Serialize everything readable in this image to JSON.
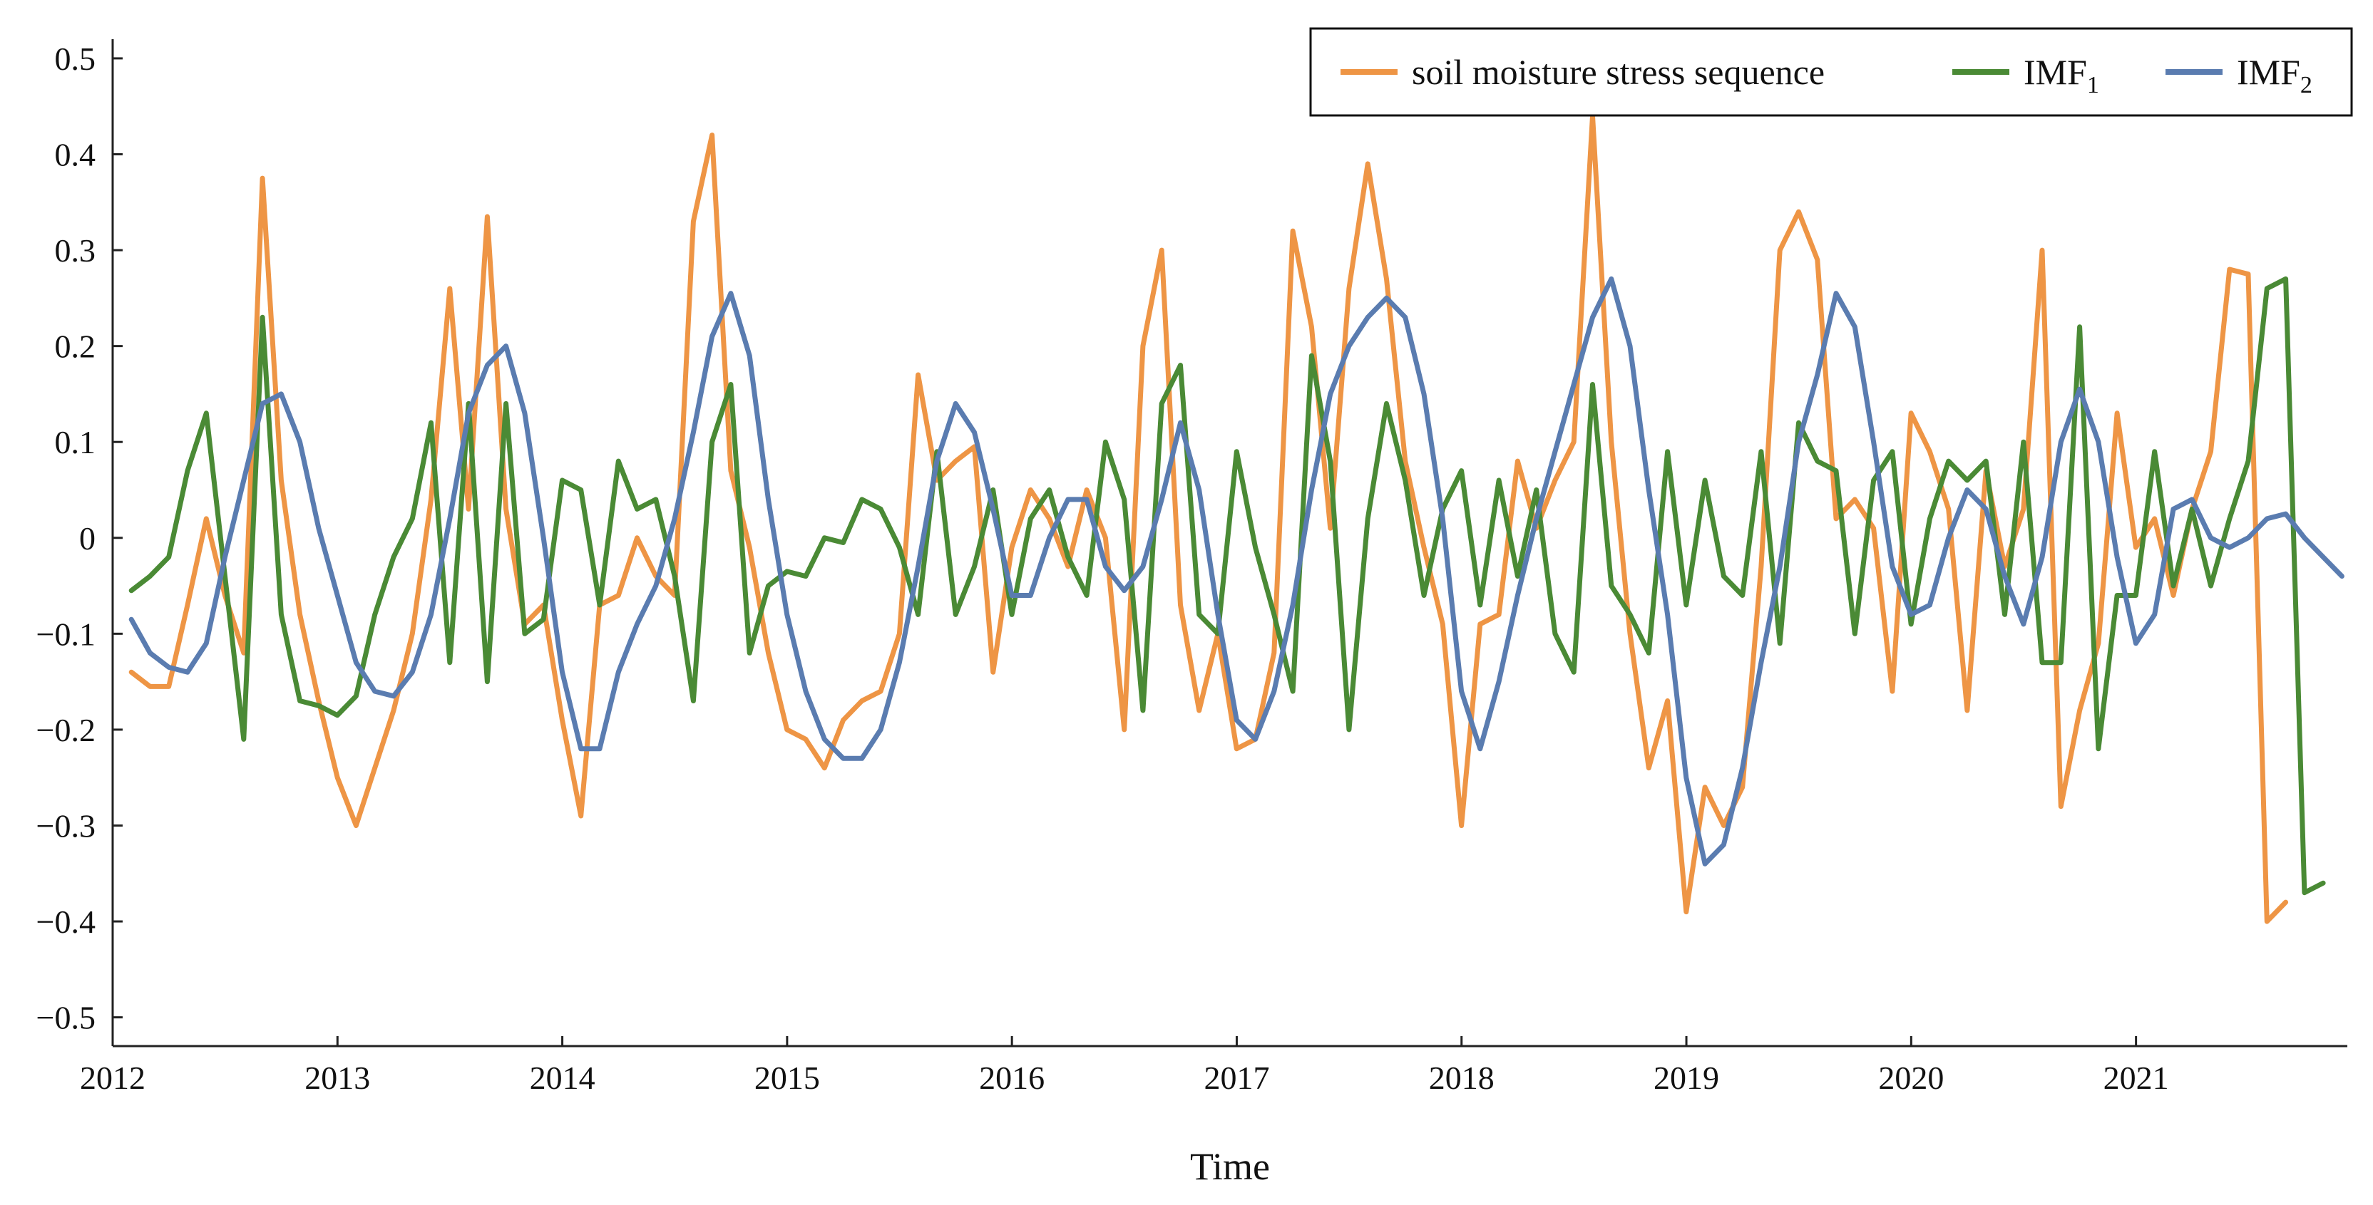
{
  "chart_data": {
    "type": "line",
    "title": "",
    "xlabel": "Time",
    "ylabel": "",
    "xlim": [
      2012.0,
      2021.94
    ],
    "ylim": [
      -0.53,
      0.52
    ],
    "x_ticks": [
      "2012",
      "2013",
      "2014",
      "2015",
      "2016",
      "2017",
      "2018",
      "2019",
      "2020",
      "2021"
    ],
    "y_ticks": [
      "0.5",
      "0.4",
      "0.3",
      "0.2",
      "0.1",
      "0",
      "−0.1",
      "−0.2",
      "−0.3",
      "−0.4",
      "−0.5"
    ],
    "y_tick_values": [
      0.5,
      0.4,
      0.3,
      0.2,
      0.1,
      0,
      -0.1,
      -0.2,
      -0.3,
      -0.4,
      -0.5
    ],
    "legend_position": "top-right",
    "x_start": 2012.083,
    "x_step": 0.08333,
    "series": [
      {
        "name": "soil moisture stress sequence",
        "legend_main": "soil moisture stress sequence",
        "legend_sub": "",
        "color": "#ee9545",
        "values": [
          -0.14,
          -0.155,
          -0.155,
          -0.07,
          0.02,
          -0.06,
          -0.12,
          0.375,
          0.06,
          -0.08,
          -0.17,
          -0.25,
          -0.3,
          -0.24,
          -0.18,
          -0.1,
          0.04,
          0.26,
          0.03,
          0.335,
          0.03,
          -0.09,
          -0.07,
          -0.19,
          -0.29,
          -0.07,
          -0.06,
          0.0,
          -0.04,
          -0.06,
          0.33,
          0.42,
          0.07,
          -0.01,
          -0.12,
          -0.2,
          -0.21,
          -0.24,
          -0.19,
          -0.17,
          -0.16,
          -0.1,
          0.17,
          0.06,
          0.08,
          0.095,
          -0.14,
          -0.01,
          0.05,
          0.02,
          -0.03,
          0.05,
          0.0,
          -0.2,
          0.2,
          0.3,
          -0.07,
          -0.18,
          -0.1,
          -0.22,
          -0.21,
          -0.12,
          0.32,
          0.22,
          0.01,
          0.26,
          0.39,
          0.27,
          0.08,
          -0.01,
          -0.09,
          -0.3,
          -0.09,
          -0.08,
          0.08,
          0.01,
          0.06,
          0.1,
          0.44,
          0.1,
          -0.1,
          -0.24,
          -0.17,
          -0.39,
          -0.26,
          -0.3,
          -0.26,
          -0.03,
          0.3,
          0.34,
          0.29,
          0.02,
          0.04,
          0.01,
          -0.16,
          0.13,
          0.09,
          0.03,
          -0.18,
          0.07,
          -0.03,
          0.03,
          0.3,
          -0.28,
          -0.18,
          -0.11,
          0.13,
          -0.01,
          0.02,
          -0.06,
          0.03,
          0.09,
          0.28,
          0.275,
          -0.4,
          -0.38
        ]
      },
      {
        "name": "IMF1",
        "legend_main": "IMF",
        "legend_sub": "1",
        "color": "#4a8a35",
        "values": [
          -0.055,
          -0.04,
          -0.02,
          0.07,
          0.13,
          -0.04,
          -0.21,
          0.23,
          -0.08,
          -0.17,
          -0.175,
          -0.185,
          -0.165,
          -0.08,
          -0.02,
          0.02,
          0.12,
          -0.13,
          0.14,
          -0.15,
          0.14,
          -0.1,
          -0.085,
          0.06,
          0.05,
          -0.07,
          0.08,
          0.03,
          0.04,
          -0.04,
          -0.17,
          0.1,
          0.16,
          -0.12,
          -0.05,
          -0.035,
          -0.04,
          0.0,
          -0.005,
          0.04,
          0.03,
          -0.01,
          -0.08,
          0.09,
          -0.08,
          -0.03,
          0.05,
          -0.08,
          0.02,
          0.05,
          -0.02,
          -0.06,
          0.1,
          0.04,
          -0.18,
          0.14,
          0.18,
          -0.08,
          -0.1,
          0.09,
          -0.01,
          -0.08,
          -0.16,
          0.19,
          0.08,
          -0.2,
          0.02,
          0.14,
          0.06,
          -0.06,
          0.03,
          0.07,
          -0.07,
          0.06,
          -0.04,
          0.05,
          -0.1,
          -0.14,
          0.16,
          -0.05,
          -0.08,
          -0.12,
          0.09,
          -0.07,
          0.06,
          -0.04,
          -0.06,
          0.09,
          -0.11,
          0.12,
          0.08,
          0.07,
          -0.1,
          0.06,
          0.09,
          -0.09,
          0.02,
          0.08,
          0.06,
          0.08,
          -0.08,
          0.1,
          -0.13,
          -0.13,
          0.22,
          -0.22,
          -0.06,
          -0.06,
          0.09,
          -0.05,
          0.03,
          -0.05,
          0.02,
          0.08,
          0.26,
          0.27,
          -0.37,
          -0.36
        ]
      },
      {
        "name": "IMF2",
        "legend_main": "IMF",
        "legend_sub": "2",
        "color": "#5a7cb0",
        "values": [
          -0.085,
          -0.12,
          -0.135,
          -0.14,
          -0.11,
          -0.02,
          0.06,
          0.14,
          0.15,
          0.1,
          0.01,
          -0.06,
          -0.13,
          -0.16,
          -0.165,
          -0.14,
          -0.08,
          0.02,
          0.13,
          0.18,
          0.2,
          0.13,
          0.0,
          -0.14,
          -0.22,
          -0.22,
          -0.14,
          -0.09,
          -0.05,
          0.02,
          0.11,
          0.21,
          0.255,
          0.19,
          0.04,
          -0.08,
          -0.16,
          -0.21,
          -0.23,
          -0.23,
          -0.2,
          -0.13,
          -0.03,
          0.08,
          0.14,
          0.11,
          0.03,
          -0.06,
          -0.06,
          0.0,
          0.04,
          0.04,
          -0.03,
          -0.055,
          -0.03,
          0.04,
          0.12,
          0.05,
          -0.08,
          -0.19,
          -0.21,
          -0.16,
          -0.07,
          0.05,
          0.15,
          0.2,
          0.23,
          0.25,
          0.23,
          0.15,
          0.02,
          -0.16,
          -0.22,
          -0.15,
          -0.06,
          0.02,
          0.09,
          0.16,
          0.23,
          0.27,
          0.2,
          0.05,
          -0.08,
          -0.25,
          -0.34,
          -0.32,
          -0.24,
          -0.13,
          -0.03,
          0.1,
          0.17,
          0.255,
          0.22,
          0.1,
          -0.03,
          -0.08,
          -0.07,
          0.0,
          0.05,
          0.03,
          -0.04,
          -0.09,
          -0.02,
          0.1,
          0.155,
          0.1,
          -0.02,
          -0.11,
          -0.08,
          0.03,
          0.04,
          0.0,
          -0.01,
          0.0,
          0.02,
          0.025,
          0.0,
          -0.02,
          -0.04
        ]
      }
    ]
  }
}
